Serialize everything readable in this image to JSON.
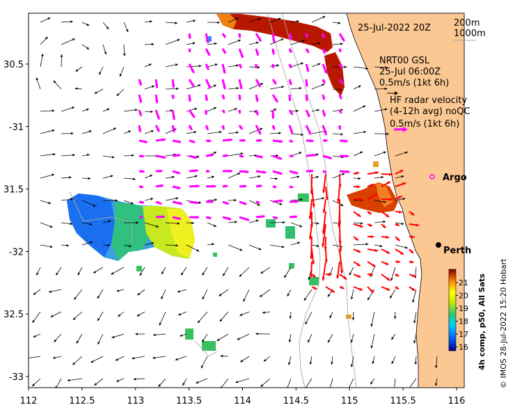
{
  "map": {
    "title_time": "25-Jul-2022 20Z",
    "contour_legend": [
      "200m",
      "1000m"
    ],
    "glider": {
      "line1": "NRT00 GSL",
      "line2": "25-Jul 06:00Z",
      "line3": "0.5m/s (1kt 6h)"
    },
    "radar": {
      "line1": "HF radar velocity",
      "line2": "(4-12h avg) noQC",
      "line3": "0.5m/s (1kt 6h)"
    },
    "argo_label": "Argo",
    "city_label": "Perth",
    "credit": "© IMOS 28-Jul-2022 15:20 Hobart",
    "colorbar_title": "4h comp, p50, All Sats",
    "colorbar_ticks": [
      "21",
      "20",
      "19",
      "18",
      "17",
      "16"
    ],
    "lon_ticks": [
      "112",
      "112.5",
      "113",
      "113.5",
      "114",
      "114.5",
      "115",
      "115.5",
      "116"
    ],
    "lat_ticks": [
      "30.5",
      "-31",
      "31.5",
      "-32",
      "32.5",
      "-33"
    ],
    "colors": {
      "land": "#fbc793",
      "model_arrow": "#000000",
      "glider_arrow": "#ff00ff",
      "radar_arrow": "#ff0000",
      "contour": "#a0a0a0"
    }
  }
}
